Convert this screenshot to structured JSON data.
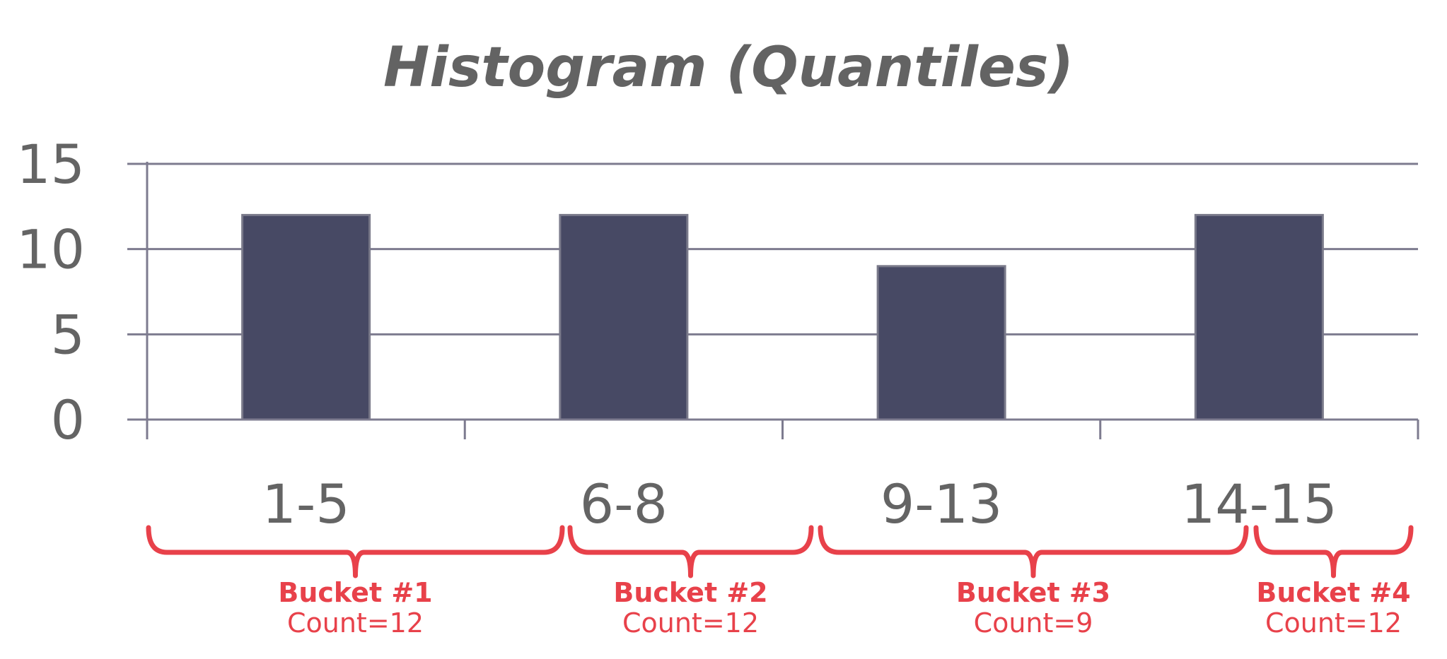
{
  "chart_data": {
    "type": "bar",
    "title": "Histogram (Quantiles)",
    "xlabel": "",
    "ylabel": "",
    "categories": [
      "1-5",
      "6-8",
      "9-13",
      "14-15"
    ],
    "values": [
      12,
      12,
      9,
      12
    ],
    "ylim": [
      0,
      15
    ],
    "yticks": [
      "0",
      "5",
      "10",
      "15"
    ],
    "grid": true,
    "legend": "none",
    "colors": {
      "bar": "#474964",
      "bar_outline": "#7a7a8a",
      "axis": "#7d7b8f",
      "text": "#646464",
      "annotation": "#e8414a"
    },
    "annotations": [
      {
        "name": "Bucket #1",
        "count": "Count=12"
      },
      {
        "name": "Bucket #2",
        "count": "Count=12"
      },
      {
        "name": "Bucket #3",
        "count": "Count=9"
      },
      {
        "name": "Bucket #4",
        "count": "Count=12"
      }
    ]
  }
}
